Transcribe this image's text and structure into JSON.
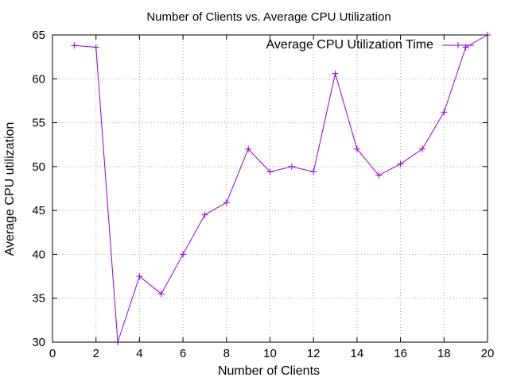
{
  "chart_data": {
    "type": "line",
    "title": "Number of Clients vs. Average CPU Utilization",
    "xlabel": "Number of Clients",
    "ylabel": "Average CPU utilization",
    "xlim": [
      0,
      20
    ],
    "ylim": [
      30,
      65
    ],
    "xticks": [
      "0",
      "2",
      "4",
      "6",
      "8",
      "10",
      "12",
      "14",
      "16",
      "18",
      "20"
    ],
    "yticks": [
      "30",
      "35",
      "40",
      "45",
      "50",
      "55",
      "60",
      "65"
    ],
    "grid": true,
    "legend_position": "top-right",
    "series": [
      {
        "name": "Average CPU Utilization Time",
        "color": "#9400d3",
        "marker": "plus",
        "x": [
          1,
          2,
          3,
          4,
          5,
          6,
          7,
          8,
          9,
          10,
          11,
          12,
          13,
          14,
          15,
          16,
          17,
          18,
          19,
          20
        ],
        "y": [
          63.8,
          63.6,
          30.0,
          37.5,
          35.5,
          40.0,
          44.5,
          45.9,
          52.0,
          49.4,
          50.0,
          49.4,
          60.6,
          52.0,
          49.0,
          50.3,
          52.0,
          56.2,
          63.6,
          65.0
        ]
      }
    ]
  }
}
